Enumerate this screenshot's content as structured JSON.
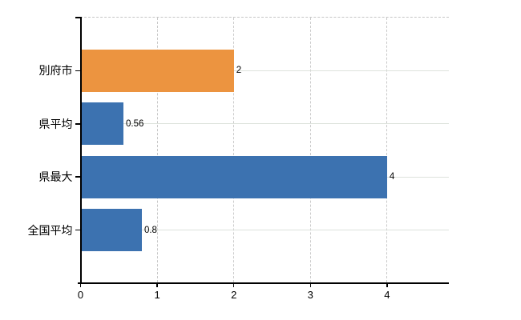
{
  "chart_data": {
    "type": "bar",
    "orientation": "horizontal",
    "title": "",
    "categories": [
      "別府市",
      "県平均",
      "県最大",
      "全国平均"
    ],
    "values": [
      2,
      0.56,
      4,
      0.8
    ],
    "value_labels": [
      "2",
      "0.56",
      "4",
      "0.8"
    ],
    "bar_colors": [
      "#ec9440",
      "#3c72b0",
      "#3c72b0",
      "#3c72b0"
    ],
    "x_tick_labels": [
      "0",
      "1",
      "2",
      "3",
      "4"
    ],
    "x_tick_values": [
      0,
      1,
      2,
      3,
      4
    ],
    "xlim": [
      0,
      4.8
    ],
    "xlabel": "",
    "ylabel": "",
    "grid": true,
    "legend": "none",
    "colors": {
      "bar_orange": "#ec9440",
      "bar_blue": "#3c72b0",
      "axis": "#000000",
      "grid_horizontal": "#dde2dc",
      "grid_vertical_dashed": "#c9c9c9",
      "top_border_dashed": "#c6c6c6",
      "text": "#000000",
      "background": "#ffffff"
    }
  }
}
